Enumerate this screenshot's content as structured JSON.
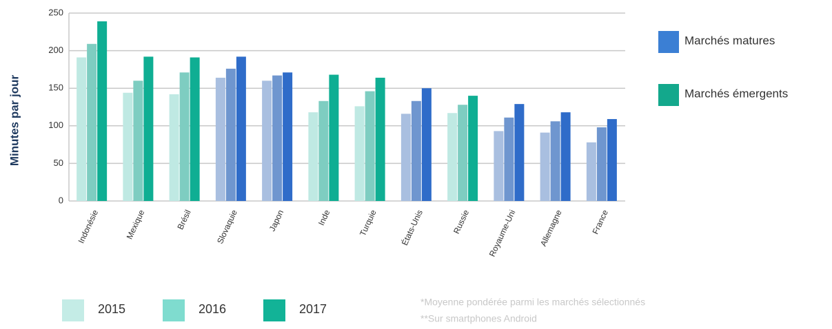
{
  "chart_data": {
    "type": "bar",
    "ylabel": "Minutes par jour",
    "categories": [
      "Indonésie",
      "Mexique",
      "Brésil",
      "Slovaquie",
      "Japon",
      "Inde",
      "Turquie",
      "États-Unis",
      "Russie",
      "Royaume-Uni",
      "Allemagne",
      "France"
    ],
    "category_group": [
      1,
      1,
      1,
      0,
      0,
      1,
      1,
      0,
      1,
      0,
      0,
      0
    ],
    "groups": [
      {
        "name": "Marchés matures",
        "color": "#3b7fd4",
        "series_colors": [
          "#a9bfe0",
          "#6f96cf",
          "#2f6cc9"
        ]
      },
      {
        "name": "Marchés émergents",
        "color": "#13a88c",
        "series_colors": [
          "#bfe9e3",
          "#7ecdc1",
          "#0fae93"
        ]
      }
    ],
    "series": [
      {
        "name": "2015",
        "color": "#c4ece6",
        "values": [
          191,
          144,
          142,
          164,
          160,
          118,
          126,
          116,
          117,
          93,
          91,
          78
        ]
      },
      {
        "name": "2016",
        "color": "#7fdccf",
        "values": [
          209,
          160,
          171,
          176,
          167,
          133,
          146,
          133,
          128,
          111,
          106,
          98
        ]
      },
      {
        "name": "2017",
        "color": "#12b397",
        "values": [
          239,
          192,
          191,
          192,
          171,
          168,
          164,
          150,
          140,
          129,
          118,
          109
        ]
      }
    ],
    "ylim": [
      0,
      250
    ],
    "yticks": [
      0,
      50,
      100,
      150,
      200,
      250
    ],
    "grid": true,
    "notes": [
      "*Moyenne pondérée parmi les marchés sélectionnés",
      "**Sur smartphones Android"
    ]
  }
}
